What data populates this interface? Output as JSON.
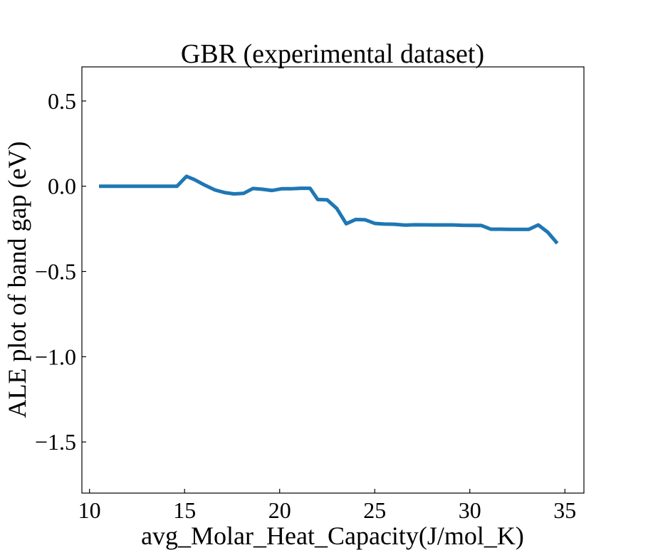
{
  "chart_data": {
    "type": "line",
    "title": "GBR (experimental dataset)",
    "xlabel": "avg_Molar_Heat_Capacity(J/mol_K)",
    "ylabel": "ALE plot of band gap (eV)",
    "xlim": [
      9.6,
      36.0
    ],
    "ylim": [
      -1.8,
      0.7
    ],
    "xticks": [
      10,
      15,
      20,
      25,
      30,
      35
    ],
    "xtick_labels": [
      "10",
      "15",
      "20",
      "25",
      "30",
      "35"
    ],
    "yticks": [
      0.5,
      0.0,
      -0.5,
      -1.0,
      -1.5
    ],
    "ytick_labels": [
      "0.5",
      "0.0",
      "−0.5",
      "−1.0",
      "−1.5"
    ],
    "grid": false,
    "series": [
      {
        "color": "#1f77b4",
        "x": [
          10.5,
          11.5,
          12.5,
          13.5,
          14.5,
          14.6,
          15.1,
          15.5,
          16.0,
          16.6,
          17.1,
          17.6,
          18.1,
          18.6,
          19.1,
          19.6,
          20.1,
          20.6,
          21.1,
          21.6,
          22.0,
          22.5,
          23.0,
          23.5,
          24.0,
          24.5,
          25.0,
          25.5,
          26.0,
          26.6,
          27.1,
          28.1,
          29.1,
          29.6,
          30.6,
          31.1,
          31.6,
          32.1,
          32.6,
          33.1,
          33.6,
          34.1,
          34.6
        ],
        "y": [
          0.0,
          0.0,
          0.0,
          0.0,
          0.0,
          0.0,
          0.058,
          0.04,
          0.01,
          -0.022,
          -0.037,
          -0.045,
          -0.042,
          -0.013,
          -0.018,
          -0.025,
          -0.015,
          -0.015,
          -0.012,
          -0.012,
          -0.078,
          -0.08,
          -0.13,
          -0.22,
          -0.195,
          -0.197,
          -0.218,
          -0.222,
          -0.223,
          -0.228,
          -0.226,
          -0.227,
          -0.227,
          -0.229,
          -0.23,
          -0.252,
          -0.252,
          -0.253,
          -0.253,
          -0.253,
          -0.227,
          -0.27,
          -0.335
        ]
      }
    ]
  }
}
